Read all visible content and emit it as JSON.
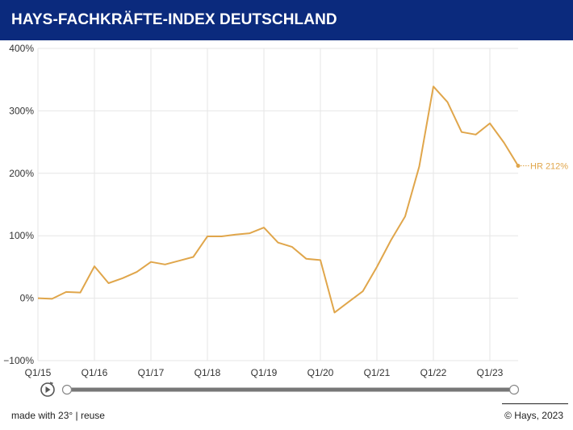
{
  "header": {
    "title": "HAYS-FACHKRÄFTE-INDEX DEUTSCHLAND"
  },
  "chart_data": {
    "type": "line",
    "title": "HAYS-FACHKRÄFTE-INDEX DEUTSCHLAND",
    "xlabel": "",
    "ylabel": "",
    "ylim": [
      -100,
      400
    ],
    "yticks": [
      -100,
      0,
      100,
      200,
      300,
      400
    ],
    "ytick_labels": [
      "−100%",
      "0%",
      "100%",
      "200%",
      "300%",
      "400%"
    ],
    "x_tick_labels": [
      "Q1/15",
      "Q1/16",
      "Q1/17",
      "Q1/18",
      "Q1/19",
      "Q1/20",
      "Q1/21",
      "Q1/22",
      "Q1/23"
    ],
    "x": [
      "Q1/15",
      "Q2/15",
      "Q3/15",
      "Q4/15",
      "Q1/16",
      "Q2/16",
      "Q3/16",
      "Q4/16",
      "Q1/17",
      "Q2/17",
      "Q3/17",
      "Q4/17",
      "Q1/18",
      "Q2/18",
      "Q3/18",
      "Q4/18",
      "Q1/19",
      "Q2/19",
      "Q3/19",
      "Q4/19",
      "Q1/20",
      "Q2/20",
      "Q3/20",
      "Q4/20",
      "Q1/21",
      "Q2/21",
      "Q3/21",
      "Q4/21",
      "Q1/22",
      "Q2/22",
      "Q3/22",
      "Q4/22",
      "Q1/23",
      "Q2/23",
      "Q3/23"
    ],
    "series": [
      {
        "name": "HR",
        "color": "#e0a64b",
        "values": [
          0,
          -1,
          10,
          9,
          51,
          24,
          32,
          42,
          58,
          54,
          60,
          66,
          99,
          99,
          102,
          104,
          113,
          89,
          82,
          63,
          61,
          -23,
          -6,
          11,
          50,
          93,
          131,
          211,
          339,
          314,
          266,
          262,
          280,
          249,
          212
        ],
        "end_label": "HR 212%"
      }
    ],
    "grid": true,
    "legend": "none"
  },
  "controls": {
    "play_icon": "play-icon",
    "slider_range": [
      "Q1/15",
      "Q3/23"
    ]
  },
  "footer": {
    "left": "made with 23° | reuse",
    "right": "© Hays, 2023"
  }
}
